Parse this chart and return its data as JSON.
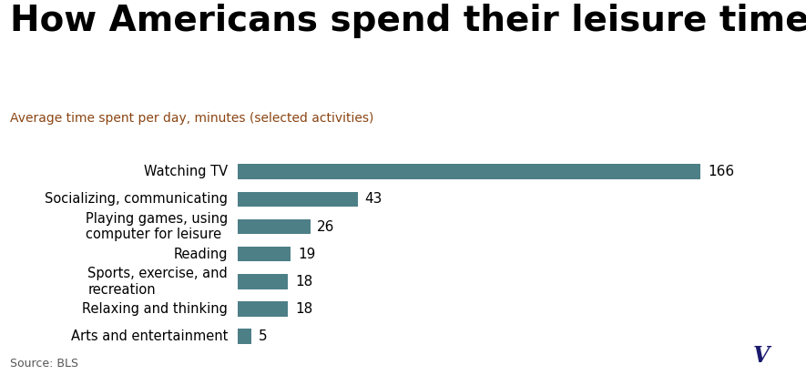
{
  "title": "How Americans spend their leisure time",
  "subtitle": "Average time spent per day, minutes (selected activities)",
  "source": "Source: BLS",
  "categories": [
    "Watching TV",
    "Socializing, communicating",
    "Playing games, using\ncomputer for leisure",
    "Reading",
    "Sports, exercise, and\nrecreation",
    "Relaxing and thinking",
    "Arts and entertainment"
  ],
  "values": [
    166,
    43,
    26,
    19,
    18,
    18,
    5
  ],
  "bar_color": "#4d7f87",
  "label_color": "#000000",
  "title_color": "#000000",
  "subtitle_color": "#8b4513",
  "source_color": "#555555",
  "background_color": "#ffffff",
  "vox_box_color": "#f0e800",
  "vox_text_color": "#1a1a6e",
  "xlim": [
    0,
    185
  ],
  "title_fontsize": 28,
  "subtitle_fontsize": 10,
  "category_fontsize": 10.5,
  "value_fontsize": 11
}
